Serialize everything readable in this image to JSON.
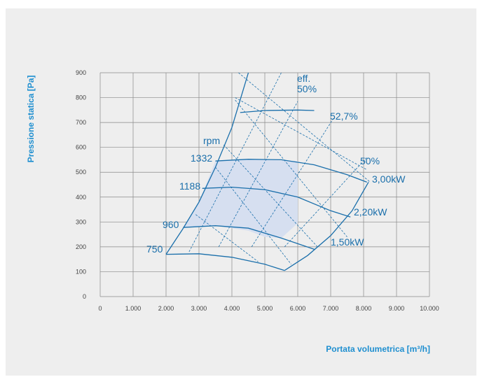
{
  "chart_data": {
    "type": "line",
    "title": "",
    "xlabel": "Portata volumetrica [m³/h]",
    "ylabel": "Pressione statica [Pa]",
    "xlim": [
      0,
      10000
    ],
    "ylim": [
      0,
      900
    ],
    "x_ticks": [
      0,
      1000,
      2000,
      3000,
      4000,
      5000,
      6000,
      7000,
      8000,
      9000,
      10000
    ],
    "x_tick_labels": [
      "0",
      "1.000",
      "2.000",
      "3.000",
      "4.000",
      "5.000",
      "6.000",
      "7.000",
      "8.000",
      "9.000",
      "10.000"
    ],
    "y_ticks": [
      0,
      100,
      200,
      300,
      400,
      500,
      600,
      700,
      800,
      900
    ],
    "y_tick_labels": [
      "0",
      "100",
      "200",
      "300",
      "400",
      "500",
      "600",
      "700",
      "800",
      "900"
    ],
    "grid": true,
    "colors": {
      "curve": "#1a6fab",
      "axis_title": "#1f8fd0",
      "grid": "#888888",
      "region_fill": "#d6dff0",
      "background": "#eeeeee"
    },
    "rpm_header": "rpm",
    "speed_curves": [
      {
        "name": "750",
        "points": [
          [
            2000,
            170
          ],
          [
            3000,
            172
          ],
          [
            4000,
            158
          ],
          [
            5000,
            130
          ],
          [
            5600,
            105
          ]
        ]
      },
      {
        "name": "960",
        "points": [
          [
            2520,
            278
          ],
          [
            3500,
            285
          ],
          [
            4500,
            275
          ],
          [
            5500,
            235
          ],
          [
            6500,
            190
          ]
        ]
      },
      {
        "name": "1188",
        "points": [
          [
            3100,
            435
          ],
          [
            4000,
            440
          ],
          [
            5000,
            430
          ],
          [
            6000,
            400
          ],
          [
            7000,
            345
          ],
          [
            7600,
            320
          ]
        ]
      },
      {
        "name": "1332",
        "points": [
          [
            3500,
            545
          ],
          [
            4500,
            552
          ],
          [
            5500,
            550
          ],
          [
            6500,
            530
          ],
          [
            7500,
            490
          ],
          [
            8100,
            460
          ]
        ]
      },
      {
        "name": "",
        "points": [
          [
            4250,
            740
          ],
          [
            5000,
            748
          ],
          [
            6000,
            750
          ],
          [
            6500,
            748
          ]
        ]
      }
    ],
    "operating_limit": [
      [
        2000,
        170
      ],
      [
        2500,
        270
      ],
      [
        3000,
        380
      ],
      [
        3500,
        520
      ],
      [
        4000,
        680
      ],
      [
        4500,
        900
      ]
    ],
    "right_envelope": [
      [
        5600,
        105
      ],
      [
        6300,
        165
      ],
      [
        7000,
        245
      ],
      [
        7650,
        345
      ],
      [
        8150,
        460
      ]
    ],
    "shaded_region": [
      [
        3500,
        545
      ],
      [
        4500,
        552
      ],
      [
        6000,
        545
      ],
      [
        6000,
        295
      ],
      [
        5500,
        235
      ],
      [
        5000,
        240
      ],
      [
        4500,
        265
      ],
      [
        3500,
        285
      ],
      [
        2520,
        278
      ],
      [
        3000,
        380
      ]
    ],
    "efficiency_lines": [
      {
        "points": [
          [
            4200,
            900
          ],
          [
            8200,
            460
          ]
        ]
      },
      {
        "points": [
          [
            4100,
            800
          ],
          [
            8100,
            510
          ]
        ]
      },
      {
        "points": [
          [
            4100,
            790
          ],
          [
            7500,
            240
          ]
        ]
      },
      {
        "points": [
          [
            3750,
            610
          ],
          [
            6600,
            200
          ]
        ]
      },
      {
        "points": [
          [
            3500,
            520
          ],
          [
            5800,
            130
          ]
        ]
      },
      {
        "points": [
          [
            2900,
            330
          ],
          [
            4800,
            140
          ]
        ]
      },
      {
        "points": [
          [
            2700,
            180
          ],
          [
            5500,
            900
          ]
        ]
      },
      {
        "points": [
          [
            3600,
            200
          ],
          [
            6000,
            785
          ]
        ]
      },
      {
        "points": [
          [
            4600,
            200
          ],
          [
            7100,
            720
          ]
        ]
      },
      {
        "points": [
          [
            5600,
            200
          ],
          [
            8100,
            560
          ]
        ]
      }
    ],
    "power_labels": [
      "3,00kW",
      "2,20kW",
      "1,50kW"
    ],
    "efficiency_labels": [
      "eff.",
      "50%",
      "52,7%",
      "50%"
    ]
  }
}
